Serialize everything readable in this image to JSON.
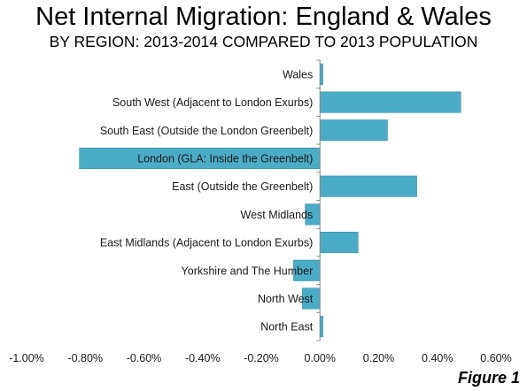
{
  "title": "Net Internal Migration: England & Wales",
  "subtitle": "BY REGION: 2013-2014 COMPARED TO 2013 POPULATION",
  "figure_label": "Figure 1",
  "colors": {
    "bar": "#4BACC6",
    "bar_stroke": "#3a8ea6",
    "axis": "#888888",
    "grid": "#d9d9d9"
  },
  "chart_data": {
    "type": "bar",
    "orientation": "horizontal",
    "title": "Net Internal Migration: England & Wales",
    "subtitle": "BY REGION: 2013-2014 COMPARED TO 2013 POPULATION",
    "categories": [
      "Wales",
      "South West (Adjacent to London Exurbs)",
      "South East (Outside the London Greenbelt)",
      "London (GLA: Inside the Greenbelt)",
      "East (Outside the Greenbelt)",
      "West Midlands",
      "East Midlands (Adjacent to London Exurbs)",
      "Yorkshire and The Humber",
      "North West",
      "North East"
    ],
    "values": [
      0.01,
      0.48,
      0.23,
      -0.82,
      0.33,
      -0.05,
      0.13,
      -0.09,
      -0.06,
      0.01
    ],
    "value_unit": "%",
    "xlim": [
      -1.0,
      0.6
    ],
    "xticks": [
      -1.0,
      -0.8,
      -0.6,
      -0.4,
      -0.2,
      0.0,
      0.2,
      0.4,
      0.6
    ],
    "xtick_labels": [
      "-1.00%",
      "-0.80%",
      "-0.60%",
      "-0.40%",
      "-0.20%",
      "0.00%",
      "0.20%",
      "0.40%",
      "0.60%"
    ],
    "grid": false,
    "legend": "none"
  }
}
